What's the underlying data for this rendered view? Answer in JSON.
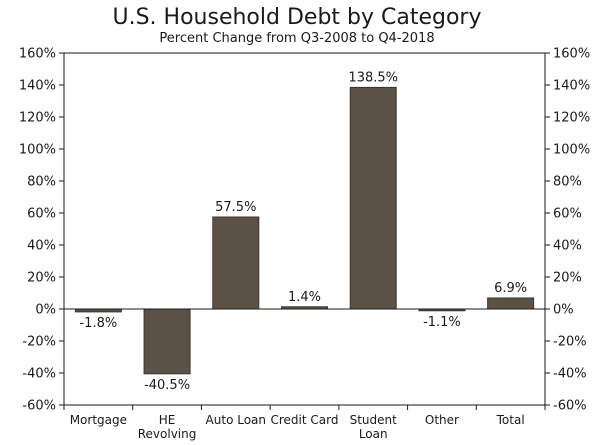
{
  "chart_data": {
    "type": "bar",
    "title": "U.S. Household Debt by Category",
    "subtitle": "Percent Change from Q3-2008 to Q4-2018",
    "categories": [
      [
        "Mortgage"
      ],
      [
        "HE",
        "Revolving"
      ],
      [
        "Auto Loan"
      ],
      [
        "Credit Card"
      ],
      [
        "Student",
        "Loan"
      ],
      [
        "Other"
      ],
      [
        "Total"
      ]
    ],
    "values": [
      -1.8,
      -40.5,
      57.5,
      1.4,
      138.5,
      -1.1,
      6.9
    ],
    "data_labels": [
      "-1.8%",
      "-40.5%",
      "57.5%",
      "1.4%",
      "138.5%",
      "-1.1%",
      "6.9%"
    ],
    "ylim": [
      -60,
      160
    ],
    "y_ticks": [
      160,
      140,
      120,
      100,
      80,
      60,
      40,
      20,
      0,
      -20,
      -40,
      -60
    ],
    "y_tick_labels": [
      "160%",
      "140%",
      "120%",
      "100%",
      "80%",
      "60%",
      "40%",
      "20%",
      "0%",
      "-20%",
      "-40%",
      "-60%"
    ],
    "y_axes": "left-and-right",
    "grid": false,
    "bar_color": "#5c5147",
    "bar_edge_color": "#3d342c"
  }
}
